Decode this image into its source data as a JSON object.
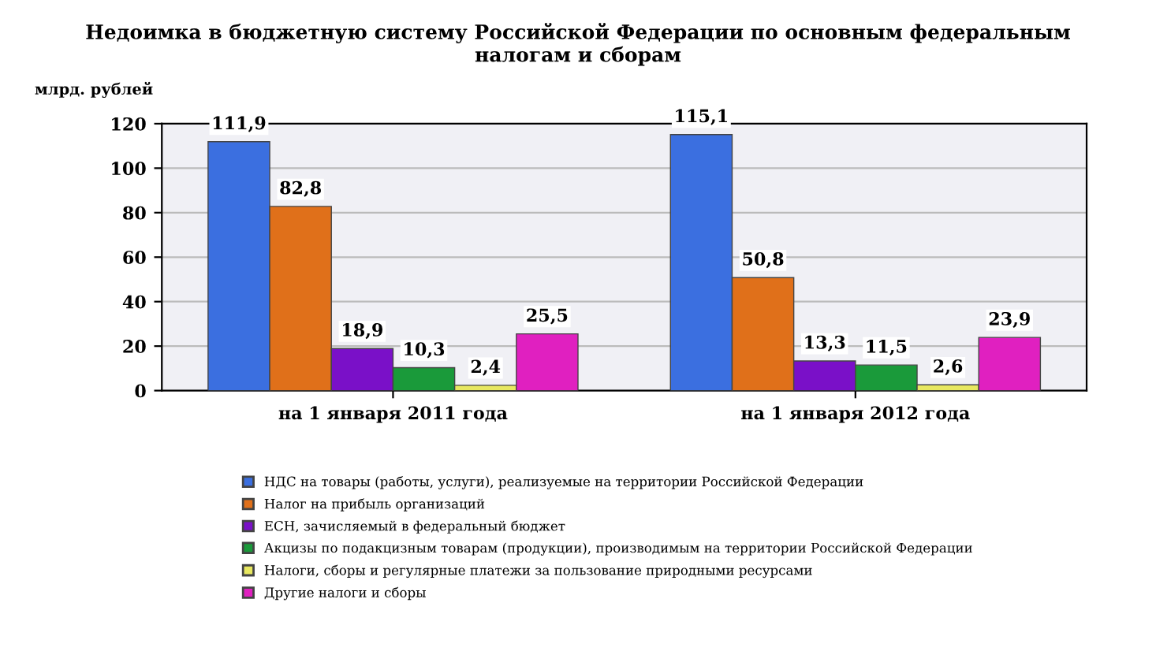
{
  "chart_data": {
    "type": "bar",
    "title": "Недоимка в бюджетную систему Российской Федерации по основным федеральным\nналогам и сборам",
    "ylabel": "млрд. рублей",
    "categories": [
      "на 1 января 2011 года",
      "на 1 января 2012 года"
    ],
    "series": [
      {
        "name": "НДС на товары (работы, услуги), реализуемые на территории Российской Федерации",
        "color": "#3b6fe0",
        "values": [
          111.9,
          115.1
        ],
        "value_labels": [
          "111,9",
          "115,1"
        ]
      },
      {
        "name": "Налог на прибыль организаций",
        "color": "#e0701a",
        "values": [
          82.8,
          50.8
        ],
        "value_labels": [
          "82,8",
          "50,8"
        ]
      },
      {
        "name": "ЕСН, зачисляемый в федеральный бюджет",
        "color": "#7a10c8",
        "values": [
          18.9,
          13.3
        ],
        "value_labels": [
          "18,9",
          "13,3"
        ]
      },
      {
        "name": "Акцизы по подакцизным товарам (продукции), производимым на территории Российской Федерации",
        "color": "#1a9a3a",
        "values": [
          10.3,
          11.5
        ],
        "value_labels": [
          "10,3",
          "11,5"
        ]
      },
      {
        "name": "Налоги, сборы и регулярные платежи за пользование природными ресурсами",
        "color": "#e8e860",
        "values": [
          2.4,
          2.6
        ],
        "value_labels": [
          "2,4",
          "2,6"
        ]
      },
      {
        "name": "Другие налоги и сборы",
        "color": "#e020c0",
        "values": [
          25.5,
          23.9
        ],
        "value_labels": [
          "25,5",
          "23,9"
        ]
      }
    ],
    "ylim": [
      0,
      120
    ],
    "yticks": [
      0,
      20,
      40,
      60,
      80,
      100,
      120
    ],
    "grid": "y",
    "legend": "bottom"
  }
}
